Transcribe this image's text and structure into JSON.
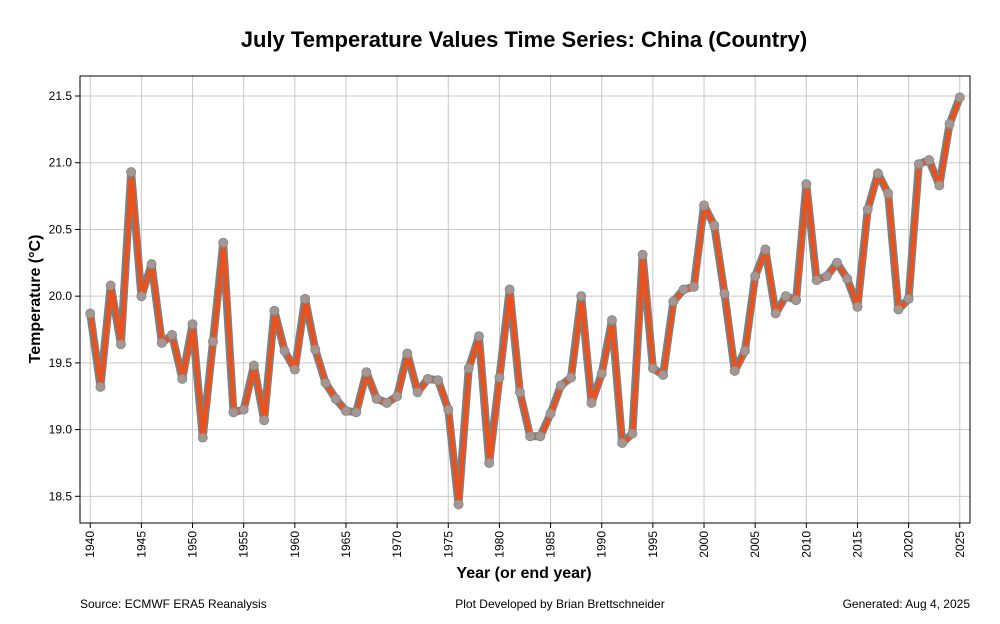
{
  "chart_data": {
    "type": "line",
    "title": "July Temperature Values Time Series: China (Country)",
    "xlabel": "Year (or end year)",
    "ylabel": "Temperature (°C)",
    "xlim": [
      1939,
      2026
    ],
    "ylim": [
      18.3,
      21.65
    ],
    "x_ticks": [
      1940,
      1945,
      1950,
      1955,
      1960,
      1965,
      1970,
      1975,
      1980,
      1985,
      1990,
      1995,
      2000,
      2005,
      2010,
      2015,
      2020,
      2025
    ],
    "y_ticks": [
      18.5,
      19.0,
      19.5,
      20.0,
      20.5,
      21.0,
      21.5
    ],
    "grid": true,
    "series": [
      {
        "color": "#e8521e",
        "outline_color": "#808080",
        "marker_color": "#a0a0a0",
        "x": [
          1940,
          1941,
          1942,
          1943,
          1944,
          1945,
          1946,
          1947,
          1948,
          1949,
          1950,
          1951,
          1952,
          1953,
          1954,
          1955,
          1956,
          1957,
          1958,
          1959,
          1960,
          1961,
          1962,
          1963,
          1964,
          1965,
          1966,
          1967,
          1968,
          1969,
          1970,
          1971,
          1972,
          1973,
          1974,
          1975,
          1976,
          1977,
          1978,
          1979,
          1980,
          1981,
          1982,
          1983,
          1984,
          1985,
          1986,
          1987,
          1988,
          1989,
          1990,
          1991,
          1992,
          1993,
          1994,
          1995,
          1996,
          1997,
          1998,
          1999,
          2000,
          2001,
          2002,
          2003,
          2004,
          2005,
          2006,
          2007,
          2008,
          2009,
          2010,
          2011,
          2012,
          2013,
          2014,
          2015,
          2016,
          2017,
          2018,
          2019,
          2020,
          2021,
          2022,
          2023,
          2024,
          2025
        ],
        "values": [
          19.87,
          19.32,
          20.08,
          19.64,
          20.93,
          20.0,
          20.24,
          19.65,
          19.71,
          19.38,
          19.79,
          18.94,
          19.66,
          20.4,
          19.13,
          19.15,
          19.48,
          19.07,
          19.89,
          19.59,
          19.45,
          19.98,
          19.6,
          19.35,
          19.23,
          19.14,
          19.13,
          19.43,
          19.23,
          19.2,
          19.25,
          19.57,
          19.28,
          19.38,
          19.37,
          19.15,
          18.44,
          19.46,
          19.7,
          18.75,
          19.39,
          20.05,
          19.28,
          18.95,
          18.95,
          19.12,
          19.33,
          19.39,
          20.0,
          19.2,
          19.42,
          19.82,
          18.9,
          18.97,
          20.31,
          19.46,
          19.41,
          19.96,
          20.05,
          20.07,
          20.68,
          20.53,
          20.02,
          19.44,
          19.59,
          20.15,
          20.35,
          19.87,
          20.0,
          19.97,
          20.84,
          20.12,
          20.15,
          20.25,
          20.13,
          19.92,
          20.65,
          20.92,
          20.77,
          19.9,
          19.98,
          20.99,
          21.02,
          20.83,
          21.29,
          21.49
        ]
      }
    ]
  },
  "footer": {
    "source": "Source: ECMWF ERA5 Reanalysis",
    "credit": "Plot Developed by Brian Brettschneider",
    "generated": "Generated: Aug 4, 2025"
  }
}
